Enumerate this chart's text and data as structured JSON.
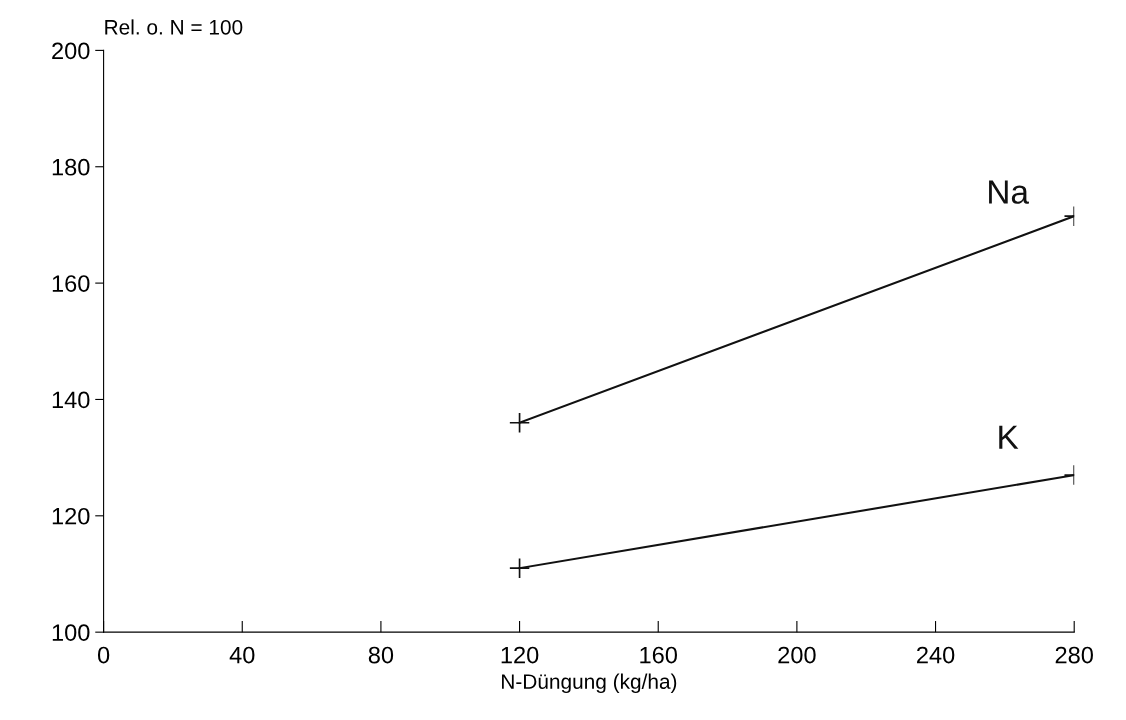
{
  "chart_data": {
    "type": "line",
    "xlabel": "N-Düngung (kg/ha)",
    "ylabel": "Rel. o. N = 100",
    "series": [
      {
        "name": "Na",
        "color": "#111111",
        "values": [
          136,
          171.5
        ]
      },
      {
        "name": "K",
        "color": "#111111",
        "values": [
          111,
          127
        ]
      }
    ],
    "x": [
      120,
      280
    ],
    "xlim": [
      0,
      280
    ],
    "xticks": [
      0,
      40,
      80,
      120,
      160,
      200,
      240,
      280
    ],
    "ylim": [
      100,
      200
    ],
    "yticks": [
      100,
      120,
      140,
      160,
      180,
      200
    ],
    "marker": "cross",
    "line_style": "solid",
    "grid": false,
    "legend": false
  }
}
